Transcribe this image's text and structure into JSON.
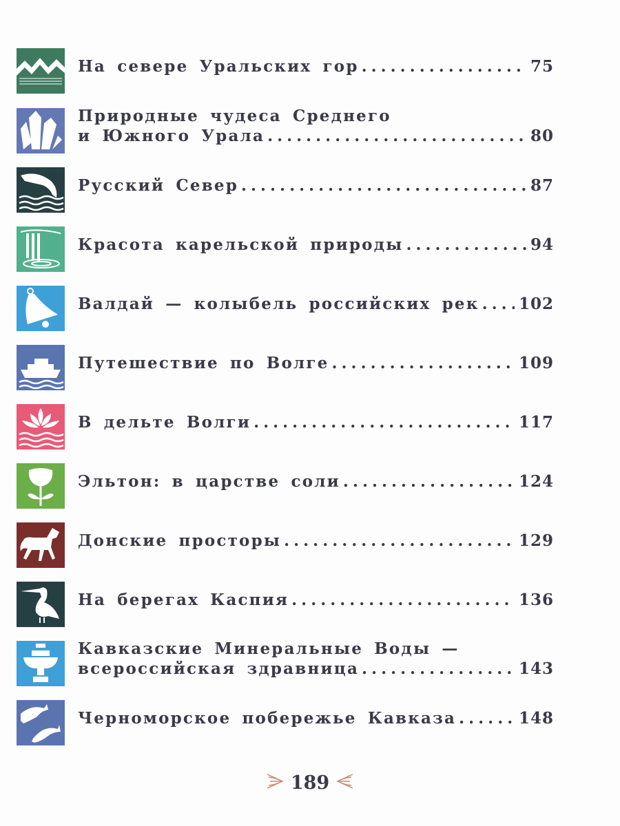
{
  "entries": [
    {
      "lines": [
        "На севере Уральских гор"
      ],
      "page": "75",
      "icon": "mountains-icon",
      "color": "#3e7a5e"
    },
    {
      "lines": [
        "Природные чудеса Среднего",
        "и Южного Урала"
      ],
      "page": "80",
      "icon": "crystals-icon",
      "color": "#6478b4"
    },
    {
      "lines": [
        "Русский Север"
      ],
      "page": "87",
      "icon": "dolphin-icon",
      "color": "#263f42"
    },
    {
      "lines": [
        "Красота карельской природы"
      ],
      "page": "94",
      "icon": "waterfall-icon",
      "color": "#52b08e"
    },
    {
      "lines": [
        "Валдай — колыбель российских рек"
      ],
      "page": "102",
      "icon": "bell-icon",
      "color": "#3fa0d8"
    },
    {
      "lines": [
        "Путешествие по Волге"
      ],
      "page": "109",
      "icon": "ship-icon",
      "color": "#5a74b0"
    },
    {
      "lines": [
        "В дельте Волги"
      ],
      "page": "117",
      "icon": "lotus-icon",
      "color": "#e75a78"
    },
    {
      "lines": [
        "Эльтон: в царстве соли"
      ],
      "page": "124",
      "icon": "flower-icon",
      "color": "#6cae48"
    },
    {
      "lines": [
        "Донские просторы"
      ],
      "page": "129",
      "icon": "horse-icon",
      "color": "#7a2e2c"
    },
    {
      "lines": [
        "На берегах Каспия"
      ],
      "page": "136",
      "icon": "pelican-icon",
      "color": "#263f42"
    },
    {
      "lines": [
        "Кавказские Минеральные Воды —",
        "всероссийская здравница"
      ],
      "page": "143",
      "icon": "fountain-icon",
      "color": "#3fa0d8"
    },
    {
      "lines": [
        "Черноморское побережье Кавказа"
      ],
      "page": "148",
      "icon": "dolphins-icon",
      "color": "#5a74b0"
    }
  ],
  "footer": {
    "page_number": "189",
    "ornament_color": "#c98a78"
  }
}
